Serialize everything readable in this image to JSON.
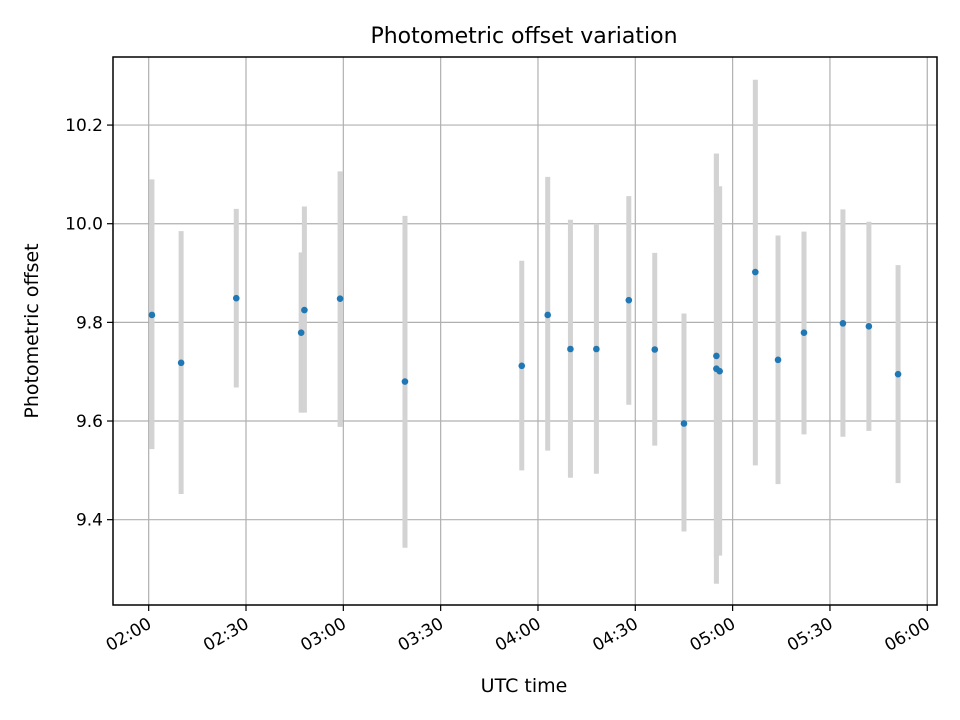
{
  "chart_data": {
    "type": "scatter",
    "title": "Photometric offset variation",
    "xlabel": "UTC time",
    "ylabel": "Photometric offset",
    "x_tick_labels": [
      "02:00",
      "02:30",
      "03:00",
      "03:30",
      "04:00",
      "04:30",
      "05:00",
      "05:30",
      "06:00"
    ],
    "y_tick_labels": [
      "9.4",
      "9.6",
      "9.8",
      "10.0",
      "10.2"
    ],
    "x_ticks": [
      "02:00",
      "02:30",
      "03:00",
      "03:30",
      "04:00",
      "04:30",
      "05:00",
      "05:30",
      "06:00"
    ],
    "y_ticks": [
      9.4,
      9.6,
      9.8,
      10.0,
      10.2
    ],
    "xlim": [
      "01:49",
      "06:03"
    ],
    "ylim": [
      9.227,
      10.338
    ],
    "grid": true,
    "points": [
      {
        "x": "02:01",
        "y": 9.815,
        "ylow": 9.543,
        "yhigh": 10.09
      },
      {
        "x": "02:10",
        "y": 9.718,
        "ylow": 9.452,
        "yhigh": 9.985
      },
      {
        "x": "02:27",
        "y": 9.849,
        "ylow": 9.668,
        "yhigh": 10.03
      },
      {
        "x": "02:47",
        "y": 9.779,
        "ylow": 9.617,
        "yhigh": 9.942
      },
      {
        "x": "02:48",
        "y": 9.825,
        "ylow": 9.617,
        "yhigh": 10.035
      },
      {
        "x": "02:59",
        "y": 9.848,
        "ylow": 9.588,
        "yhigh": 10.106
      },
      {
        "x": "03:19",
        "y": 9.68,
        "ylow": 9.343,
        "yhigh": 10.016
      },
      {
        "x": "03:55",
        "y": 9.712,
        "ylow": 9.5,
        "yhigh": 9.925
      },
      {
        "x": "04:03",
        "y": 9.815,
        "ylow": 9.54,
        "yhigh": 10.095
      },
      {
        "x": "04:10",
        "y": 9.746,
        "ylow": 9.485,
        "yhigh": 10.008
      },
      {
        "x": "04:18",
        "y": 9.746,
        "ylow": 9.493,
        "yhigh": 10.0
      },
      {
        "x": "04:28",
        "y": 9.845,
        "ylow": 9.633,
        "yhigh": 10.056
      },
      {
        "x": "04:36",
        "y": 9.745,
        "ylow": 9.55,
        "yhigh": 9.941
      },
      {
        "x": "04:45",
        "y": 9.595,
        "ylow": 9.376,
        "yhigh": 9.818
      },
      {
        "x": "04:55",
        "y": 9.706,
        "ylow": 9.27,
        "yhigh": 10.142
      },
      {
        "x": "04:55",
        "y": 9.732,
        "ylow": 9.325,
        "yhigh": 10.142
      },
      {
        "x": "04:56",
        "y": 9.701,
        "ylow": 9.327,
        "yhigh": 10.076
      },
      {
        "x": "05:07",
        "y": 9.902,
        "ylow": 9.51,
        "yhigh": 10.292
      },
      {
        "x": "05:14",
        "y": 9.724,
        "ylow": 9.472,
        "yhigh": 9.976
      },
      {
        "x": "05:22",
        "y": 9.779,
        "ylow": 9.573,
        "yhigh": 9.984
      },
      {
        "x": "05:34",
        "y": 9.798,
        "ylow": 9.568,
        "yhigh": 10.029
      },
      {
        "x": "05:42",
        "y": 9.792,
        "ylow": 9.58,
        "yhigh": 10.004
      },
      {
        "x": "05:51",
        "y": 9.695,
        "ylow": 9.474,
        "yhigh": 9.916
      }
    ],
    "colors": {
      "point": "#1f77b4",
      "errorbar": "#d3d3d3",
      "grid": "#b0b0b0",
      "axis": "#000000"
    }
  }
}
